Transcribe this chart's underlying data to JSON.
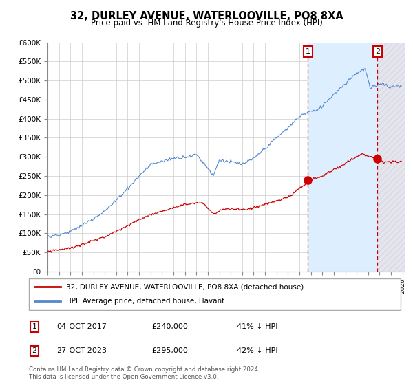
{
  "title": "32, DURLEY AVENUE, WATERLOOVILLE, PO8 8XA",
  "subtitle": "Price paid vs. HM Land Registry's House Price Index (HPI)",
  "ylim": [
    0,
    600000
  ],
  "yticks": [
    0,
    50000,
    100000,
    150000,
    200000,
    250000,
    300000,
    350000,
    400000,
    450000,
    500000,
    550000,
    600000
  ],
  "hpi_color": "#5588cc",
  "price_color": "#cc0000",
  "sale1_year": 2017.75,
  "sale1_price": 240000,
  "sale2_year": 2023.82,
  "sale2_price": 295000,
  "legend_label1": "32, DURLEY AVENUE, WATERLOOVILLE, PO8 8XA (detached house)",
  "legend_label2": "HPI: Average price, detached house, Havant",
  "note1_date": "04-OCT-2017",
  "note1_price": "£240,000",
  "note1_pct": "41% ↓ HPI",
  "note2_date": "27-OCT-2023",
  "note2_price": "£295,000",
  "note2_pct": "42% ↓ HPI",
  "footer": "Contains HM Land Registry data © Crown copyright and database right 2024.\nThis data is licensed under the Open Government Licence v3.0.",
  "background_color": "#ffffff",
  "grid_color": "#cccccc",
  "shade_color": "#ddeeff",
  "hatch_color": "#ccccdd"
}
